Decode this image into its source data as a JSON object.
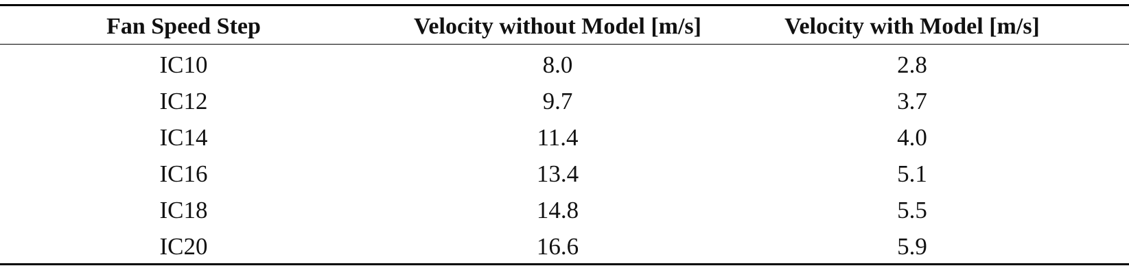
{
  "table": {
    "header": [
      "Fan Speed Step",
      "Velocity without Model [m/s]",
      "Velocity with Model [m/s]"
    ],
    "rows": [
      [
        "IC10",
        "8.0",
        "2.8"
      ],
      [
        "IC12",
        "9.7",
        "3.7"
      ],
      [
        "IC14",
        "11.4",
        "4.0"
      ],
      [
        "IC16",
        "13.4",
        "5.1"
      ],
      [
        "IC18",
        "14.8",
        "5.5"
      ],
      [
        "IC20",
        "16.6",
        "5.9"
      ]
    ]
  }
}
